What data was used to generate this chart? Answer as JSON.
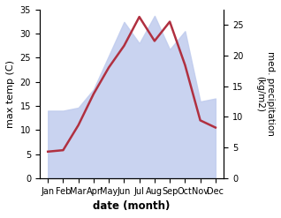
{
  "months": [
    "Jan",
    "Feb",
    "Mar",
    "Apr",
    "May",
    "Jun",
    "Jul",
    "Aug",
    "Sep",
    "Oct",
    "Nov",
    "Dec"
  ],
  "temp": [
    5.5,
    5.8,
    11.0,
    17.5,
    23.0,
    27.5,
    33.5,
    28.5,
    32.5,
    23.5,
    12.0,
    10.5
  ],
  "precip": [
    11.0,
    11.0,
    11.5,
    14.5,
    20.0,
    25.5,
    22.0,
    26.5,
    21.0,
    24.0,
    12.5,
    13.0
  ],
  "temp_ylim": [
    0,
    35
  ],
  "precip_ylim": [
    0,
    27.5
  ],
  "temp_yticks": [
    0,
    5,
    10,
    15,
    20,
    25,
    30,
    35
  ],
  "precip_yticks": [
    0,
    5,
    10,
    15,
    20,
    25
  ],
  "ylabel_left": "max temp (C)",
  "ylabel_right": "med. precipitation\n(kg/m2)",
  "xlabel": "date (month)",
  "line_color": "#b03040",
  "fill_color": "#c0ccee",
  "fill_alpha": 0.85,
  "bg_color": "#ffffff",
  "figwidth": 3.18,
  "figheight": 2.47,
  "dpi": 100
}
